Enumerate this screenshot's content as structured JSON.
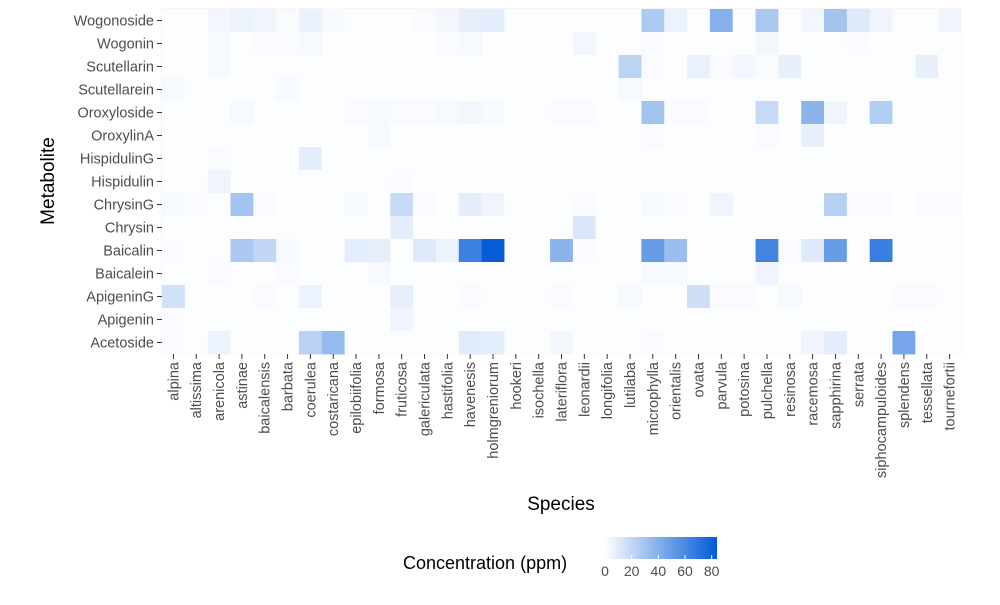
{
  "chart_data": {
    "type": "heatmap",
    "xlabel": "Species",
    "ylabel": "Metabolite",
    "legend": {
      "title": "Concentration (ppm)",
      "ticks": [
        0,
        20,
        40,
        60,
        80
      ],
      "range": [
        0,
        84
      ],
      "color_low": "#ffffff",
      "color_high": "#0059d6",
      "placement": "bottom"
    },
    "x_categories": [
      "alpina",
      "altissima",
      "arenicola",
      "astinae",
      "baicalensis",
      "barbata",
      "coerulea",
      "costaricana",
      "epilobiifolia",
      "formosa",
      "fruticosa",
      "galericulata",
      "hastifolia",
      "havenesis",
      "holmgreniorum",
      "hookeri",
      "isochella",
      "lateriflora",
      "leonardii",
      "longifolia",
      "lutilaba",
      "microphylla",
      "orientalis",
      "ovata",
      "parvula",
      "potosina",
      "pulchella",
      "resinosa",
      "racemosa",
      "sapphirina",
      "serrata",
      "siphocampuloides",
      "splendens",
      "tessellata",
      "tournefortii"
    ],
    "y_categories": [
      "Wogonoside",
      "Wogonin",
      "Scutellarin",
      "Scutellarein",
      "Oroxyloside",
      "OroxylinA",
      "HispidulinG",
      "Hispidulin",
      "ChrysinG",
      "Chrysin",
      "Baicalin",
      "Baicalein",
      "ApigeninG",
      "Apigenin",
      "Acetoside"
    ],
    "values": [
      [
        1,
        1,
        4,
        6,
        5,
        2,
        7,
        3,
        1,
        1,
        1,
        2,
        4,
        8,
        9,
        1,
        1,
        1,
        1,
        1,
        1,
        27,
        6,
        1,
        40,
        1,
        28,
        1,
        4,
        30,
        11,
        5,
        1,
        1,
        5
      ],
      [
        1,
        1,
        3,
        1,
        2,
        2,
        3,
        1,
        1,
        1,
        1,
        1,
        2,
        3,
        1,
        1,
        1,
        1,
        4,
        1,
        1,
        2,
        1,
        1,
        1,
        1,
        4,
        1,
        1,
        1,
        2,
        1,
        1,
        1,
        1
      ],
      [
        1,
        1,
        3,
        1,
        1,
        1,
        1,
        1,
        1,
        1,
        1,
        1,
        1,
        1,
        1,
        1,
        1,
        1,
        1,
        1,
        22,
        2,
        1,
        7,
        2,
        4,
        2,
        8,
        1,
        1,
        1,
        1,
        1,
        8,
        1
      ],
      [
        3,
        1,
        1,
        1,
        1,
        3,
        1,
        1,
        1,
        1,
        1,
        1,
        1,
        1,
        1,
        1,
        1,
        1,
        1,
        1,
        3,
        1,
        1,
        1,
        1,
        1,
        1,
        1,
        1,
        1,
        1,
        1,
        1,
        1,
        1
      ],
      [
        1,
        1,
        1,
        3,
        1,
        1,
        1,
        1,
        2,
        3,
        2,
        2,
        3,
        4,
        3,
        1,
        1,
        2,
        2,
        1,
        1,
        30,
        2,
        2,
        1,
        1,
        18,
        1,
        38,
        5,
        1,
        25,
        1,
        1,
        1
      ],
      [
        1,
        1,
        1,
        1,
        1,
        1,
        1,
        1,
        1,
        3,
        1,
        1,
        1,
        1,
        1,
        1,
        1,
        1,
        1,
        1,
        1,
        2,
        1,
        1,
        1,
        1,
        2,
        1,
        8,
        1,
        1,
        1,
        1,
        1,
        1
      ],
      [
        1,
        1,
        2,
        1,
        1,
        1,
        9,
        1,
        1,
        1,
        1,
        1,
        1,
        1,
        1,
        1,
        1,
        1,
        1,
        1,
        1,
        1,
        1,
        1,
        1,
        1,
        1,
        1,
        1,
        1,
        1,
        1,
        1,
        1,
        1
      ],
      [
        1,
        1,
        5,
        1,
        1,
        1,
        1,
        1,
        1,
        1,
        2,
        1,
        1,
        1,
        1,
        1,
        1,
        1,
        1,
        1,
        1,
        1,
        1,
        1,
        1,
        1,
        1,
        1,
        1,
        1,
        1,
        1,
        1,
        1,
        1
      ],
      [
        3,
        2,
        1,
        30,
        2,
        1,
        1,
        1,
        3,
        1,
        18,
        2,
        1,
        9,
        5,
        1,
        1,
        1,
        2,
        1,
        1,
        3,
        2,
        1,
        5,
        1,
        1,
        1,
        1,
        24,
        2,
        2,
        1,
        2,
        2
      ],
      [
        1,
        1,
        1,
        1,
        1,
        1,
        1,
        1,
        1,
        1,
        9,
        1,
        1,
        1,
        1,
        1,
        1,
        1,
        12,
        1,
        1,
        1,
        1,
        1,
        1,
        1,
        1,
        1,
        1,
        1,
        1,
        1,
        1,
        1,
        1
      ],
      [
        2,
        1,
        1,
        28,
        20,
        3,
        1,
        1,
        9,
        8,
        1,
        11,
        6,
        64,
        82,
        1,
        1,
        38,
        2,
        1,
        1,
        50,
        33,
        1,
        1,
        1,
        62,
        2,
        11,
        50,
        1,
        65,
        1,
        1,
        1
      ],
      [
        1,
        1,
        2,
        1,
        1,
        2,
        1,
        1,
        1,
        3,
        1,
        1,
        1,
        1,
        1,
        1,
        1,
        1,
        1,
        1,
        1,
        3,
        3,
        1,
        1,
        1,
        5,
        1,
        1,
        1,
        1,
        1,
        1,
        1,
        1
      ],
      [
        15,
        1,
        1,
        1,
        2,
        1,
        6,
        1,
        1,
        1,
        8,
        1,
        1,
        2,
        1,
        1,
        1,
        2,
        1,
        1,
        3,
        1,
        1,
        16,
        2,
        2,
        1,
        3,
        1,
        1,
        1,
        1,
        2,
        2,
        1
      ],
      [
        2,
        1,
        1,
        1,
        1,
        1,
        1,
        1,
        1,
        1,
        5,
        1,
        1,
        1,
        1,
        1,
        1,
        1,
        1,
        1,
        1,
        1,
        1,
        1,
        1,
        1,
        1,
        1,
        1,
        1,
        1,
        1,
        1,
        1,
        1
      ],
      [
        2,
        1,
        6,
        1,
        1,
        1,
        23,
        35,
        1,
        1,
        1,
        1,
        1,
        10,
        9,
        1,
        1,
        4,
        1,
        1,
        1,
        2,
        1,
        1,
        1,
        1,
        1,
        1,
        5,
        9,
        1,
        1,
        45,
        1,
        1
      ]
    ]
  }
}
